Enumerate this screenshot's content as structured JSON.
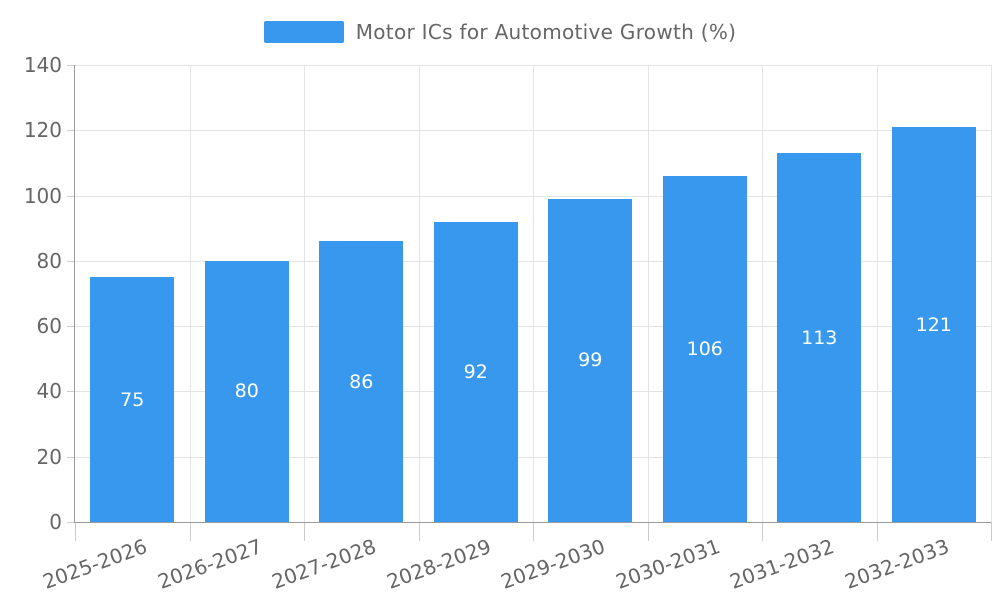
{
  "legend": {
    "series_label": "Motor ICs for Automotive Growth (%)"
  },
  "colors": {
    "bar": "#3898EE",
    "grid_line": "#E4E4E4",
    "axis_line": "#999999",
    "tick_line": "#CCCCCC",
    "axis_text": "#666666",
    "legend_text": "#666666",
    "value_label_text": "#FFFFFF",
    "background": "#FFFFFF"
  },
  "chart_data": {
    "type": "bar",
    "title": "Motor ICs for Automotive Growth (%)",
    "categories": [
      "2025-2026",
      "2026-2027",
      "2027-2028",
      "2028-2029",
      "2029-2030",
      "2030-2031",
      "2031-2032",
      "2032-2033"
    ],
    "values": [
      75,
      80,
      86,
      92,
      99,
      106,
      113,
      121
    ],
    "series": [
      {
        "name": "Motor ICs for Automotive Growth (%)",
        "values": [
          75,
          80,
          86,
          92,
          99,
          106,
          113,
          121
        ]
      }
    ],
    "xlabel": "",
    "ylabel": "",
    "ylim": [
      0,
      140
    ],
    "yticks": [
      0,
      20,
      40,
      60,
      80,
      100,
      120,
      140
    ],
    "grid": true,
    "legend_position": "top-center",
    "value_label_position": "inside-center",
    "x_label_rotation_deg": -20
  }
}
